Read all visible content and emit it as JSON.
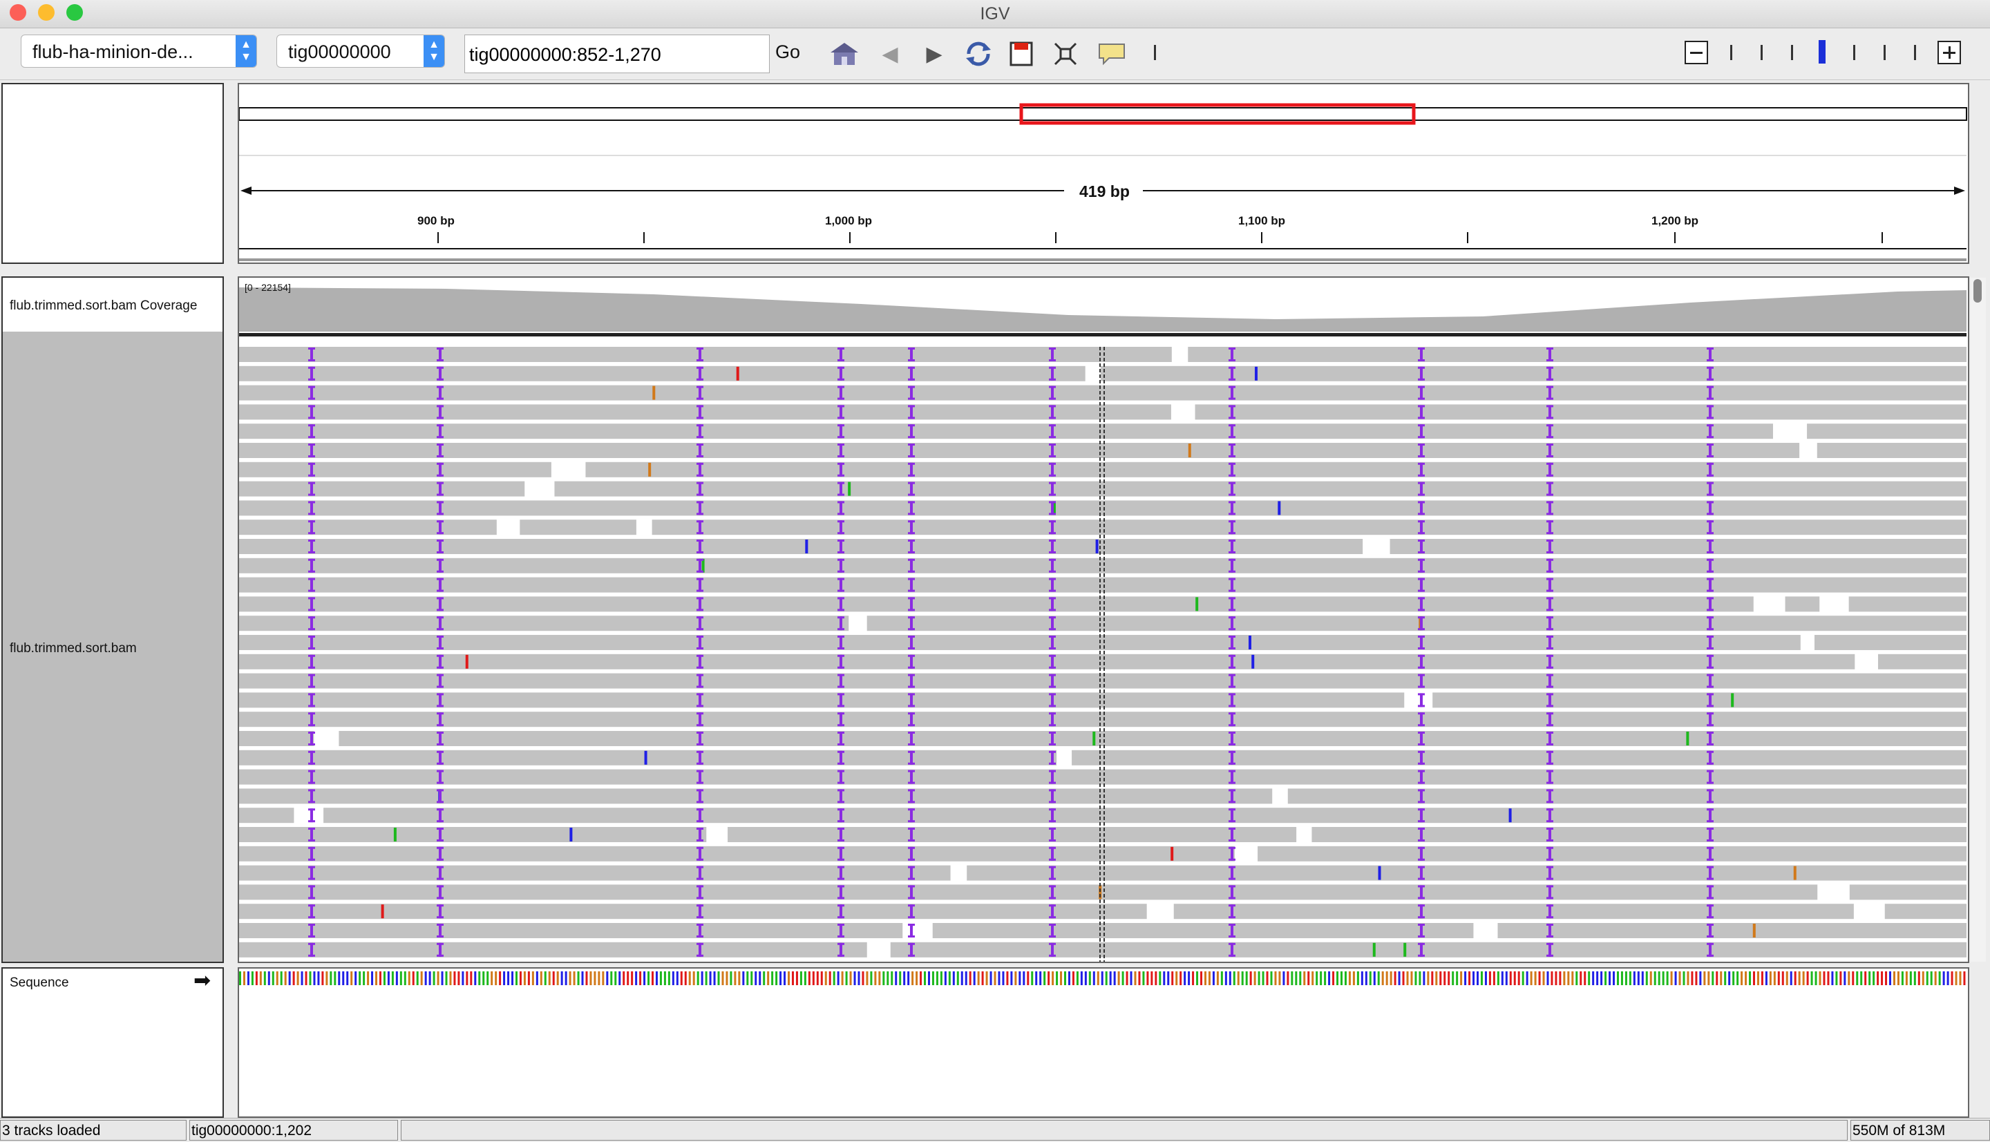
{
  "window": {
    "title": "IGV"
  },
  "toolbar": {
    "genome": "flub-ha-minion-de...",
    "chromosome": "tig00000000",
    "locus": "tig00000000:852-1,270",
    "go_label": "Go"
  },
  "ruler": {
    "span_label": "419 bp",
    "ticks": [
      "900 bp",
      "1,000 bp",
      "1,100 bp",
      "1,200 bp"
    ]
  },
  "tracks": {
    "coverage_name": "flub.trimmed.sort.bam Coverage",
    "coverage_range": "[0 - 22154]",
    "alignment_name": "flub.trimmed.sort.bam",
    "sequence_name": "Sequence"
  },
  "status": {
    "tracks_loaded": "3 tracks loaded",
    "position": "tig00000000:1,202",
    "memory": "550M of 813M"
  },
  "colors": {
    "read": "#c2c2c2",
    "insertion": "#8a2be2",
    "region_box": "#e8161b",
    "base_A": "#1db81d",
    "base_C": "#1f1fe6",
    "base_G": "#d1791a",
    "base_T": "#e01919"
  }
}
